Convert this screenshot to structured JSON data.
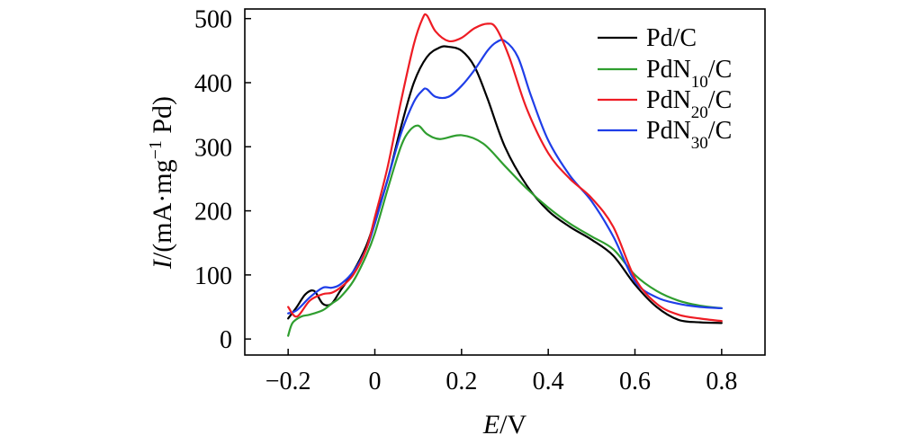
{
  "chart_data": {
    "type": "line",
    "title": "",
    "xlabel": "E/V",
    "xlabel_parts": {
      "var": "E",
      "unit": "/V"
    },
    "ylabel": "I/(mA·mg−1 Pd)",
    "ylabel_parts": {
      "var": "I",
      "pre": "/(mA·mg",
      "sup": "−1",
      "post": " Pd)"
    },
    "xlim": [
      -0.3,
      0.9
    ],
    "ylim": [
      -25,
      515
    ],
    "xticks": [
      -0.2,
      0,
      0.2,
      0.4,
      0.6,
      0.8
    ],
    "xtick_labels": [
      "−0.2",
      "0",
      "0.2",
      "0.4",
      "0.6",
      "0.8"
    ],
    "yticks": [
      0,
      100,
      200,
      300,
      400,
      500
    ],
    "ytick_labels": [
      "0",
      "100",
      "200",
      "300",
      "400",
      "500"
    ],
    "grid": false,
    "legend_position": "top-right",
    "series": [
      {
        "name": "Pd/C",
        "label_main": "Pd/C",
        "label_sub": "",
        "label_tail": "",
        "color": "#000000",
        "x": [
          -0.2,
          -0.18,
          -0.16,
          -0.14,
          -0.12,
          -0.1,
          -0.08,
          -0.05,
          -0.02,
          0.0,
          0.03,
          0.06,
          0.09,
          0.12,
          0.15,
          0.17,
          0.2,
          0.23,
          0.26,
          0.3,
          0.35,
          0.4,
          0.45,
          0.5,
          0.55,
          0.6,
          0.65,
          0.7,
          0.75,
          0.8
        ],
        "y": [
          32,
          50,
          70,
          75,
          55,
          55,
          75,
          105,
          145,
          185,
          250,
          330,
          400,
          440,
          455,
          456,
          450,
          425,
          375,
          300,
          240,
          200,
          175,
          155,
          130,
          85,
          50,
          30,
          26,
          25
        ]
      },
      {
        "name": "PdN10/C",
        "label_main": "PdN",
        "label_sub": "10",
        "label_tail": "/C",
        "color": "#2f9e2f",
        "x": [
          -0.2,
          -0.19,
          -0.17,
          -0.15,
          -0.12,
          -0.1,
          -0.08,
          -0.05,
          -0.02,
          0.0,
          0.03,
          0.06,
          0.08,
          0.1,
          0.12,
          0.15,
          0.2,
          0.25,
          0.3,
          0.35,
          0.4,
          0.45,
          0.5,
          0.55,
          0.6,
          0.65,
          0.7,
          0.75,
          0.8
        ],
        "y": [
          5,
          25,
          35,
          38,
          45,
          55,
          65,
          90,
          130,
          165,
          235,
          300,
          325,
          333,
          320,
          312,
          318,
          305,
          270,
          235,
          205,
          180,
          160,
          140,
          100,
          75,
          60,
          52,
          48
        ]
      },
      {
        "name": "PdN20/C",
        "label_main": "PdN",
        "label_sub": "20",
        "label_tail": "/C",
        "color": "#ee1c24",
        "x": [
          -0.2,
          -0.18,
          -0.15,
          -0.12,
          -0.1,
          -0.08,
          -0.05,
          -0.02,
          0.0,
          0.03,
          0.06,
          0.09,
          0.11,
          0.12,
          0.14,
          0.17,
          0.2,
          0.23,
          0.26,
          0.28,
          0.31,
          0.35,
          0.4,
          0.45,
          0.5,
          0.55,
          0.6,
          0.65,
          0.7,
          0.75,
          0.8
        ],
        "y": [
          50,
          35,
          60,
          70,
          72,
          80,
          100,
          140,
          190,
          270,
          370,
          460,
          500,
          505,
          480,
          465,
          470,
          485,
          492,
          485,
          440,
          360,
          290,
          250,
          220,
          175,
          95,
          55,
          38,
          32,
          28
        ]
      },
      {
        "name": "PdN30/C",
        "label_main": "PdN",
        "label_sub": "30",
        "label_tail": "/C",
        "color": "#1f3ee8",
        "x": [
          -0.2,
          -0.18,
          -0.15,
          -0.12,
          -0.1,
          -0.08,
          -0.05,
          -0.02,
          0.0,
          0.03,
          0.06,
          0.09,
          0.11,
          0.12,
          0.14,
          0.17,
          0.2,
          0.23,
          0.26,
          0.28,
          0.3,
          0.33,
          0.36,
          0.4,
          0.45,
          0.5,
          0.55,
          0.6,
          0.65,
          0.7,
          0.75,
          0.8
        ],
        "y": [
          40,
          45,
          65,
          80,
          80,
          85,
          105,
          140,
          180,
          250,
          320,
          370,
          388,
          390,
          378,
          378,
          395,
          420,
          450,
          463,
          465,
          440,
          380,
          310,
          255,
          215,
          160,
          90,
          65,
          55,
          50,
          48
        ]
      }
    ]
  }
}
